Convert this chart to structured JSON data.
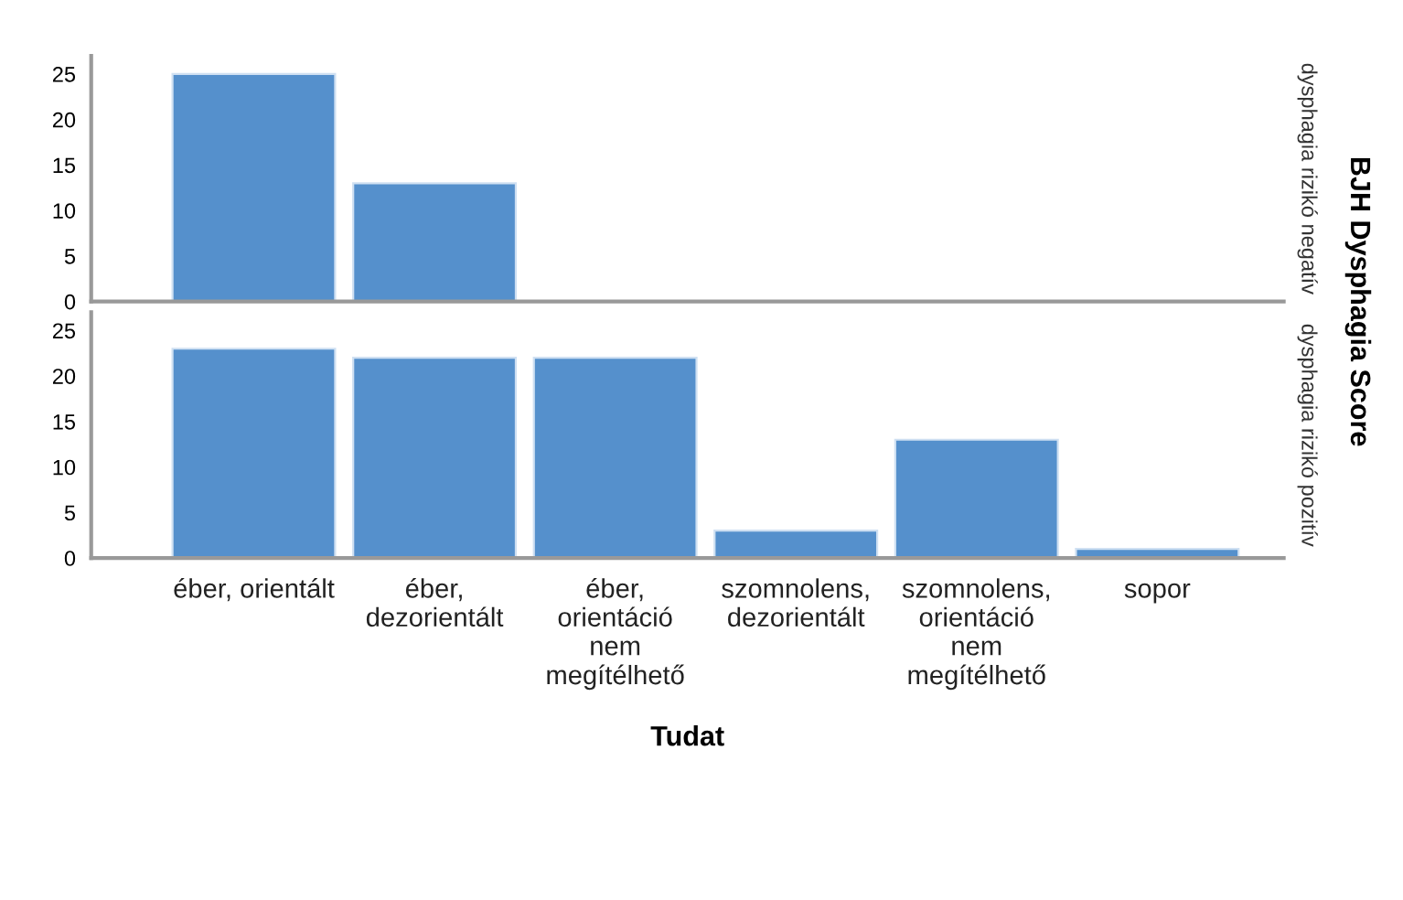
{
  "chart_data": [
    {
      "type": "bar",
      "values": [
        25,
        13,
        0,
        0,
        0,
        0
      ],
      "color": "#5590cc",
      "ylim": [
        0,
        27
      ],
      "yticks": [
        0,
        5,
        10,
        15,
        20,
        25
      ],
      "grid": false,
      "tick_labels": "y",
      "y2label": "dysphagia rizikó negatív",
      "annotations": [
        "BJH Dysphagia Score"
      ]
    },
    {
      "type": "bar",
      "categories": [
        "éber, orientált",
        "éber,\ndezorientált",
        "éber,\norientáció\nnem\nmegítélhető",
        "szomnolens,\ndezorientált",
        "szomnolens,\norientáció\nnem\nmegítélhető",
        "sopor"
      ],
      "values": [
        23,
        22,
        22,
        3,
        13,
        1
      ],
      "color": "#5590cc",
      "ylim": [
        0,
        27
      ],
      "yticks": [
        0,
        5,
        10,
        15,
        20,
        25
      ],
      "grid": false,
      "xlabel": "Tudat",
      "y2label": "dysphagia rizikó pozitív"
    }
  ]
}
